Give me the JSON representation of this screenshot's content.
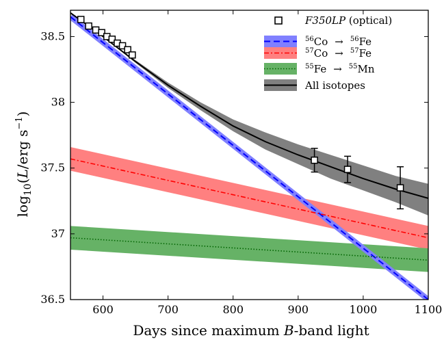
{
  "chart_data": {
    "type": "line",
    "xlabel_prefix": "Days since maximum ",
    "xlabel_italic": "B",
    "xlabel_suffix": "-band light",
    "ylabel_main": "log",
    "ylabel_sub": "10",
    "ylabel_paren_open": "(",
    "ylabel_var": "L",
    "ylabel_unit": "/erg s",
    "ylabel_exp": "−1",
    "ylabel_paren_close": ")",
    "xlim": [
      550,
      1100
    ],
    "ylim": [
      36.5,
      38.7
    ],
    "xticks": [
      600,
      700,
      800,
      900,
      1000,
      1100
    ],
    "yticks": [
      36.5,
      37,
      37.5,
      38,
      38.5
    ],
    "ytick_labels": [
      "36.5",
      "37",
      "37.5",
      "38",
      "38.5"
    ],
    "grid": false,
    "legend_position": "top-right",
    "legend": {
      "data_italic": "F350LP",
      "data_suffix": " (optical)",
      "co56_a": "56",
      "co56_b": "Co",
      "co56_arrow": "→",
      "co56_c": "56",
      "co56_d": "Fe",
      "co57_a": "57",
      "co57_b": "Co",
      "co57_arrow": "→",
      "co57_c": "57",
      "co57_d": "Fe",
      "fe55_a": "55",
      "fe55_b": "Fe",
      "fe55_arrow": "→",
      "fe55_c": "55",
      "fe55_d": "Mn",
      "all": "All isotopes"
    },
    "series": [
      {
        "key": "co56",
        "color": "#0000ff",
        "band_color": "#8080ff",
        "style": "dashed",
        "x": [
          550,
          1100
        ],
        "y": [
          38.65,
          36.5
        ]
      },
      {
        "key": "co57",
        "color": "#ff0000",
        "band_color": "#ff8080",
        "style": "dashdot",
        "x": [
          550,
          1100
        ],
        "y": [
          37.57,
          36.97
        ],
        "band_upper": [
          37.66,
          37.06
        ],
        "band_lower": [
          37.48,
          36.88
        ]
      },
      {
        "key": "fe55",
        "color": "#006400",
        "band_color": "#66b266",
        "style": "dotted",
        "x": [
          550,
          1100
        ],
        "y": [
          36.97,
          36.8
        ],
        "band_upper": [
          37.06,
          36.89
        ],
        "band_lower": [
          36.88,
          36.71
        ]
      },
      {
        "key": "all",
        "color": "#000000",
        "band_color": "#808080",
        "style": "solid",
        "x": [
          550,
          600,
          650,
          700,
          750,
          800,
          850,
          900,
          950,
          1000,
          1050,
          1100
        ],
        "y": [
          38.68,
          38.5,
          38.31,
          38.13,
          37.97,
          37.82,
          37.7,
          37.6,
          37.51,
          37.42,
          37.34,
          37.27
        ],
        "band_upper": [
          38.68,
          38.5,
          38.32,
          38.15,
          38.0,
          37.87,
          37.77,
          37.68,
          37.6,
          37.52,
          37.44,
          37.38
        ],
        "band_lower": [
          38.68,
          38.5,
          38.3,
          38.11,
          37.94,
          37.78,
          37.64,
          37.53,
          37.42,
          37.33,
          37.24,
          37.14
        ]
      }
    ],
    "observations": {
      "name": "F350LP (optical)",
      "x": [
        566,
        578,
        589,
        598,
        606,
        614,
        622,
        630,
        638,
        645,
        925,
        976,
        1057
      ],
      "y": [
        38.63,
        38.58,
        38.55,
        38.53,
        38.5,
        38.48,
        38.45,
        38.43,
        38.4,
        38.36,
        37.56,
        37.49,
        37.35
      ],
      "err": [
        0,
        0,
        0,
        0,
        0,
        0,
        0,
        0,
        0,
        0,
        0.09,
        0.1,
        0.16
      ]
    }
  }
}
